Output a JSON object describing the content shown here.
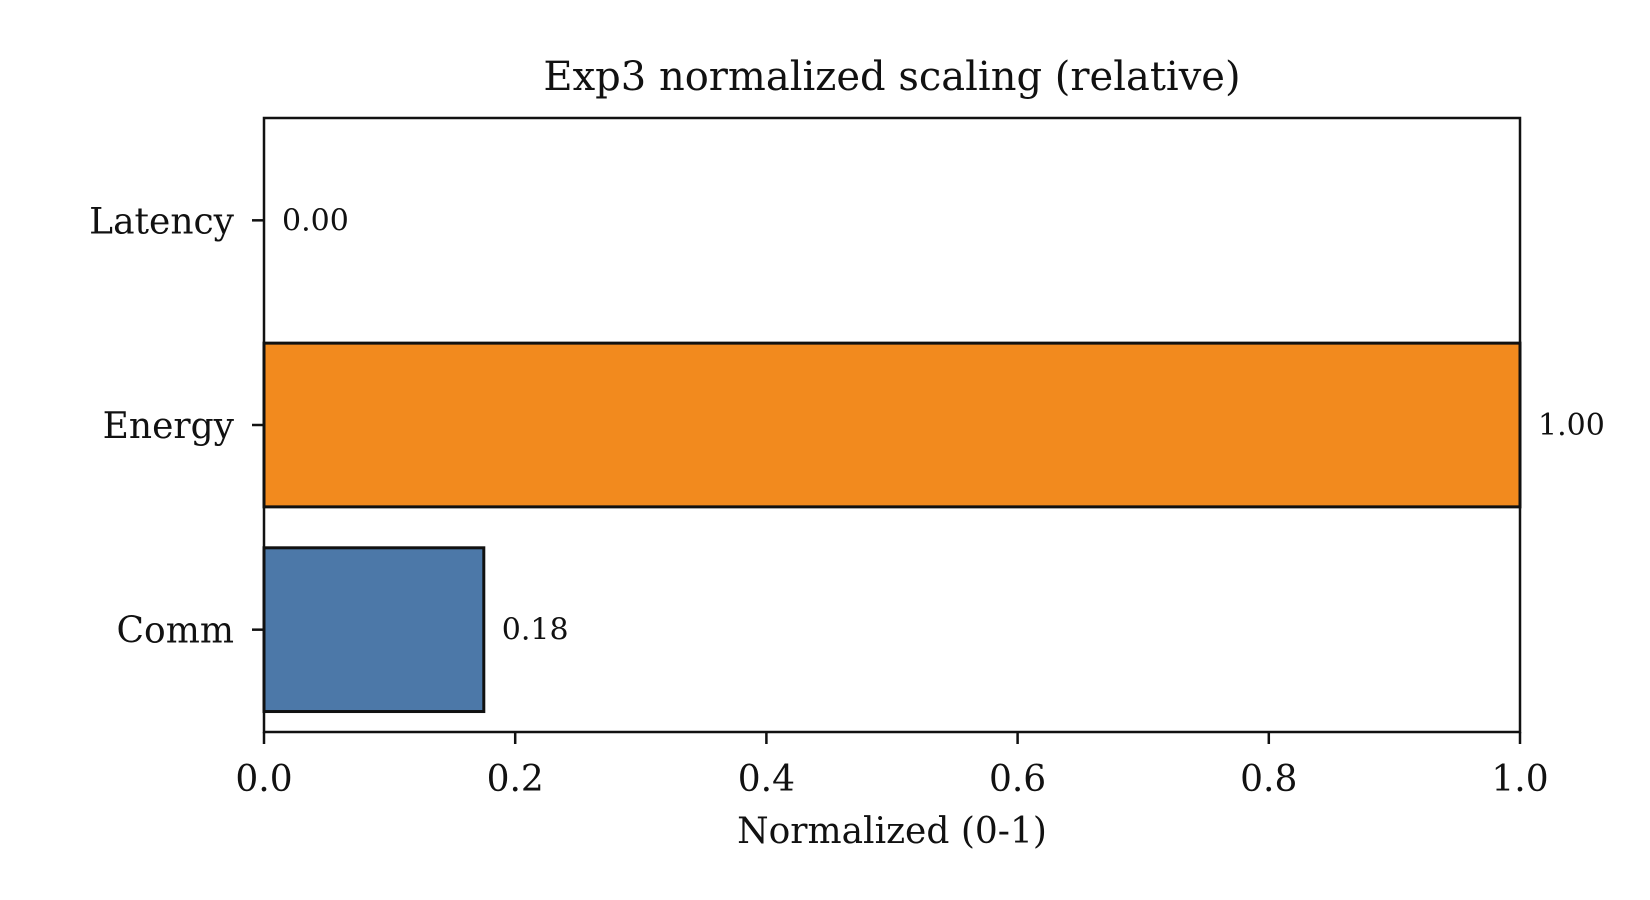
{
  "chart_data": {
    "type": "bar",
    "orientation": "horizontal",
    "title": "Exp3 normalized scaling (relative)",
    "xlabel": "Normalized (0-1)",
    "ylabel": "",
    "xlim": [
      0,
      1
    ],
    "xticks": [
      0.0,
      0.2,
      0.4,
      0.6,
      0.8,
      1.0
    ],
    "xtick_labels": [
      "0.0",
      "0.2",
      "0.4",
      "0.6",
      "0.8",
      "1.0"
    ],
    "categories": [
      "Latency",
      "Energy",
      "Comm"
    ],
    "values": [
      0.0,
      1.0,
      0.175
    ],
    "value_labels": [
      "0.00",
      "1.00",
      "0.18"
    ],
    "colors": [
      "#4c78a8",
      "#f28a1e",
      "#4c78a8"
    ],
    "edge_color": "#111111",
    "grid": false,
    "legend": "none"
  }
}
